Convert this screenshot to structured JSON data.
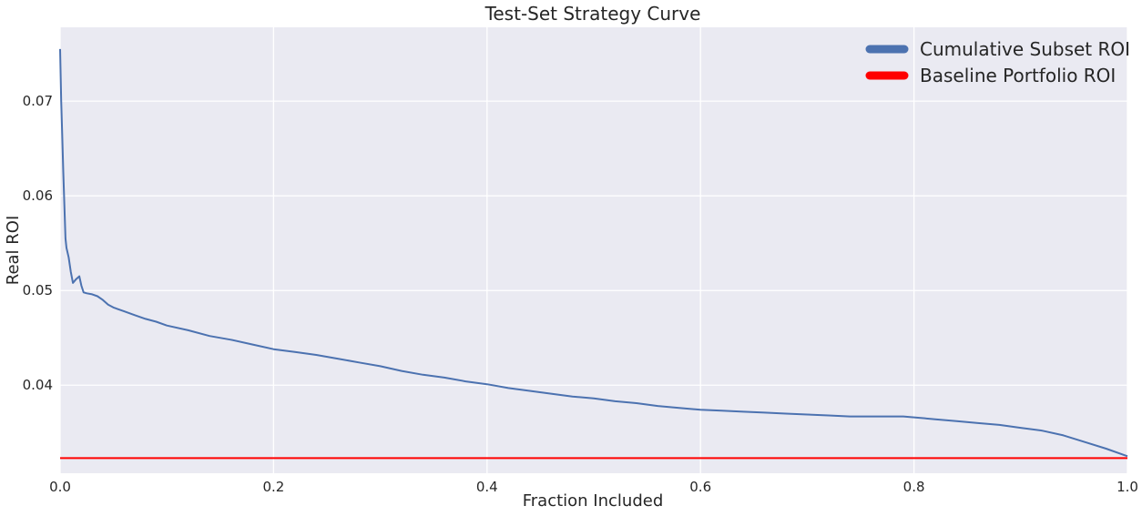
{
  "chart_data": {
    "type": "line",
    "title": "Test-Set Strategy Curve",
    "xlabel": "Fraction Included",
    "ylabel": "Real ROI",
    "xlim": [
      0.0,
      1.0
    ],
    "ylim": [
      0.0307,
      0.0778
    ],
    "xticks": [
      "0.0",
      "0.2",
      "0.4",
      "0.6",
      "0.8",
      "1.0"
    ],
    "yticks": [
      "0.04",
      "0.05",
      "0.06",
      "0.07"
    ],
    "grid": true,
    "legend_position": "top-right",
    "series": [
      {
        "name": "Cumulative Subset ROI",
        "color": "#4c72b0",
        "x": [
          0.0,
          0.001,
          0.002,
          0.003,
          0.004,
          0.005,
          0.006,
          0.008,
          0.01,
          0.012,
          0.015,
          0.018,
          0.02,
          0.022,
          0.025,
          0.03,
          0.035,
          0.04,
          0.045,
          0.05,
          0.06,
          0.07,
          0.08,
          0.09,
          0.1,
          0.12,
          0.14,
          0.16,
          0.18,
          0.2,
          0.22,
          0.24,
          0.26,
          0.28,
          0.3,
          0.32,
          0.34,
          0.36,
          0.38,
          0.4,
          0.42,
          0.44,
          0.46,
          0.48,
          0.5,
          0.52,
          0.54,
          0.56,
          0.58,
          0.6,
          0.62,
          0.64,
          0.66,
          0.68,
          0.7,
          0.72,
          0.74,
          0.76,
          0.78,
          0.79,
          0.8,
          0.82,
          0.84,
          0.86,
          0.88,
          0.9,
          0.92,
          0.94,
          0.96,
          0.98,
          1.0
        ],
        "y": [
          0.0755,
          0.07,
          0.0665,
          0.0625,
          0.059,
          0.0555,
          0.0545,
          0.0535,
          0.052,
          0.0508,
          0.0512,
          0.0515,
          0.0505,
          0.0498,
          0.0497,
          0.0496,
          0.0494,
          0.049,
          0.0485,
          0.0482,
          0.0478,
          0.0474,
          0.047,
          0.0467,
          0.0463,
          0.0458,
          0.0452,
          0.0448,
          0.0443,
          0.0438,
          0.0435,
          0.0432,
          0.0428,
          0.0424,
          0.042,
          0.0415,
          0.0411,
          0.0408,
          0.0404,
          0.0401,
          0.0397,
          0.0394,
          0.0391,
          0.0388,
          0.0386,
          0.0383,
          0.0381,
          0.0378,
          0.0376,
          0.0374,
          0.0373,
          0.0372,
          0.0371,
          0.037,
          0.0369,
          0.0368,
          0.0367,
          0.0367,
          0.0367,
          0.0367,
          0.0366,
          0.0364,
          0.0362,
          0.036,
          0.0358,
          0.0355,
          0.0352,
          0.0347,
          0.034,
          0.0333,
          0.0325
        ]
      },
      {
        "name": "Baseline Portfolio ROI",
        "color": "#ff0000",
        "x": [
          0.0,
          1.0
        ],
        "y": [
          0.0323,
          0.0323
        ]
      }
    ]
  }
}
